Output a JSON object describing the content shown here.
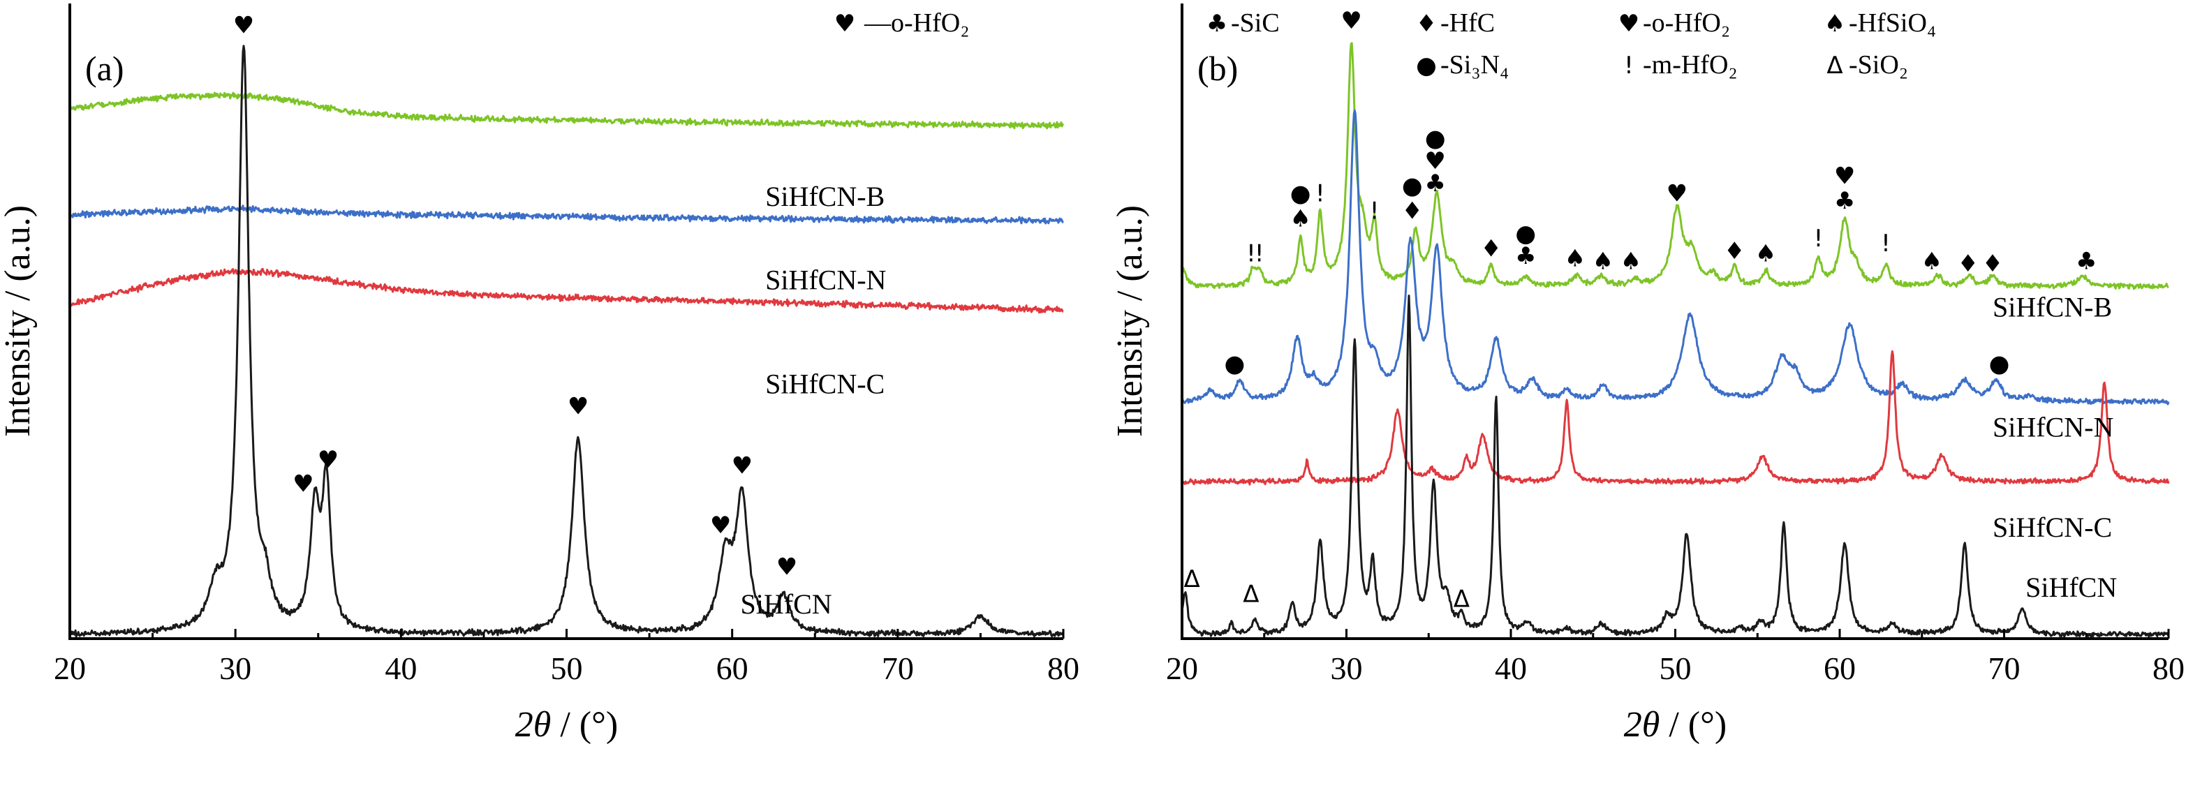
{
  "symbols": {
    "heart": "♥",
    "diamond": "♦",
    "spade": "♠",
    "club": "♣",
    "dot": "●",
    "excl": "!",
    "delta": "Δ"
  },
  "chart_data": [
    {
      "panel": "(a)",
      "type": "line",
      "xlabel_italic": "2θ",
      "xlabel_rest": " / (°)",
      "ylabel": "Intensity / (a.u.)",
      "xlim": [
        20,
        80
      ],
      "xticks": [
        "20",
        "30",
        "40",
        "50",
        "60",
        "70",
        "80"
      ],
      "legend": [
        {
          "marker": "heart",
          "text": "—o-HfO₂"
        }
      ],
      "series": [
        {
          "name": "SiHfCN-B",
          "color": "#7dc426",
          "offset": 0.855,
          "scale": 0.05,
          "base": [
            [
              20,
              0.55
            ],
            [
              22,
              0.7
            ],
            [
              24,
              0.85
            ],
            [
              26,
              0.95
            ],
            [
              28,
              1.0
            ],
            [
              30,
              1.0
            ],
            [
              31.5,
              0.96
            ],
            [
              33,
              0.85
            ],
            [
              35,
              0.65
            ],
            [
              37,
              0.45
            ],
            [
              40,
              0.3
            ],
            [
              45,
              0.22
            ],
            [
              50,
              0.18
            ],
            [
              55,
              0.14
            ],
            [
              60,
              0.1
            ],
            [
              65,
              0.07
            ],
            [
              70,
              0.05
            ],
            [
              75,
              0.03
            ],
            [
              80,
              0.0
            ]
          ],
          "peaks": []
        },
        {
          "name": "SiHfCN-N",
          "color": "#3c6fc8",
          "offset": 0.695,
          "scale": 0.025,
          "base": [
            [
              20,
              0.4
            ],
            [
              25,
              0.6
            ],
            [
              28,
              0.75
            ],
            [
              31,
              0.8
            ],
            [
              34,
              0.6
            ],
            [
              38,
              0.45
            ],
            [
              45,
              0.35
            ],
            [
              55,
              0.2
            ],
            [
              65,
              0.12
            ],
            [
              80,
              0.0
            ]
          ],
          "peaks": []
        },
        {
          "name": "SiHfCN-C",
          "color": "#e0393e",
          "offset": 0.545,
          "scale": 0.065,
          "base": [
            [
              20,
              0.15
            ],
            [
              23,
              0.45
            ],
            [
              26,
              0.75
            ],
            [
              29,
              0.95
            ],
            [
              31,
              1.0
            ],
            [
              33,
              0.92
            ],
            [
              36,
              0.75
            ],
            [
              40,
              0.52
            ],
            [
              45,
              0.38
            ],
            [
              50,
              0.32
            ],
            [
              55,
              0.27
            ],
            [
              60,
              0.22
            ],
            [
              65,
              0.17
            ],
            [
              70,
              0.12
            ],
            [
              75,
              0.06
            ],
            [
              80,
              0.0
            ]
          ],
          "peaks": []
        },
        {
          "name": "SiHfCN",
          "color": "#1a1a1a",
          "offset": 0.0,
          "scale": 1.0,
          "base": [
            [
              20,
              0.0
            ],
            [
              80,
              0.0
            ]
          ],
          "peaks": [
            [
              28.8,
              0.06,
              0.5
            ],
            [
              30.5,
              0.98,
              0.38
            ],
            [
              31.8,
              0.06,
              0.4
            ],
            [
              34.8,
              0.2,
              0.35
            ],
            [
              35.5,
              0.24,
              0.3
            ],
            [
              50.7,
              0.33,
              0.45
            ],
            [
              59.6,
              0.12,
              0.5
            ],
            [
              60.6,
              0.22,
              0.45
            ],
            [
              63.1,
              0.06,
              0.45
            ],
            [
              75.0,
              0.03,
              0.6
            ]
          ]
        }
      ],
      "curve_labels": [
        {
          "text": "SiHfCN-B",
          "x": 62,
          "y": 0.72
        },
        {
          "text": "SiHfCN-N",
          "x": 62,
          "y": 0.58
        },
        {
          "text": "SiHfCN-C",
          "x": 62,
          "y": 0.405
        },
        {
          "text": "SiHfCN",
          "x": 60.5,
          "y": 0.035,
          "big": true
        }
      ],
      "markers": [
        {
          "sym": "heart",
          "x": 30.5,
          "y": 1.01
        },
        {
          "sym": "heart",
          "x": 34.1,
          "y": 0.24
        },
        {
          "sym": "heart",
          "x": 35.6,
          "y": 0.28
        },
        {
          "sym": "heart",
          "x": 50.7,
          "y": 0.37
        },
        {
          "sym": "heart",
          "x": 59.3,
          "y": 0.17
        },
        {
          "sym": "heart",
          "x": 60.6,
          "y": 0.27
        },
        {
          "sym": "heart",
          "x": 63.3,
          "y": 0.1
        }
      ]
    },
    {
      "panel": "(b)",
      "type": "line",
      "xlabel_italic": "2θ",
      "xlabel_rest": " / (°)",
      "ylabel": "Intensity / (a.u.)",
      "xlim": [
        20,
        80
      ],
      "xticks": [
        "20",
        "30",
        "40",
        "50",
        "60",
        "70",
        "80"
      ],
      "legend": [
        {
          "marker": "club",
          "text": "-SiC"
        },
        {
          "marker": "diamond",
          "text": "-HfC"
        },
        {
          "marker": "heart",
          "text": "-o-HfO₂"
        },
        {
          "marker": "spade",
          "text": "-HfSiO₄"
        },
        {
          "marker": "dot",
          "text": "-Si₃N₄"
        },
        {
          "marker": "excl",
          "text": "-m-HfO₂"
        },
        {
          "marker": "delta",
          "text": "-SiO₂"
        }
      ],
      "series": [
        {
          "name": "SiHfCN-B",
          "color": "#7dc426",
          "offset": 0.695,
          "scale": 1.0,
          "base": [
            [
              20,
              0.0
            ],
            [
              80,
              0.0
            ]
          ],
          "peaks": [
            [
              20.1,
              0.03,
              0.2
            ],
            [
              24.3,
              0.03,
              0.2
            ],
            [
              24.7,
              0.03,
              0.2
            ],
            [
              27.2,
              0.09,
              0.2
            ],
            [
              28.4,
              0.14,
              0.2
            ],
            [
              30.3,
              0.47,
              0.28
            ],
            [
              31.0,
              0.08,
              0.3
            ],
            [
              31.7,
              0.11,
              0.2
            ],
            [
              34.2,
              0.1,
              0.25
            ],
            [
              35.5,
              0.18,
              0.35
            ],
            [
              36.5,
              0.03,
              0.3
            ],
            [
              38.8,
              0.04,
              0.2
            ],
            [
              40.9,
              0.02,
              0.3
            ],
            [
              44.0,
              0.02,
              0.3
            ],
            [
              45.5,
              0.02,
              0.3
            ],
            [
              47.6,
              0.01,
              0.3
            ],
            [
              50.1,
              0.15,
              0.4
            ],
            [
              51.0,
              0.06,
              0.4
            ],
            [
              52.3,
              0.02,
              0.3
            ],
            [
              53.6,
              0.04,
              0.2
            ],
            [
              55.5,
              0.03,
              0.25
            ],
            [
              58.7,
              0.05,
              0.25
            ],
            [
              60.3,
              0.13,
              0.35
            ],
            [
              61.0,
              0.03,
              0.3
            ],
            [
              62.8,
              0.04,
              0.25
            ],
            [
              66.0,
              0.02,
              0.3
            ],
            [
              67.9,
              0.02,
              0.3
            ],
            [
              69.3,
              0.02,
              0.3
            ],
            [
              74.8,
              0.02,
              0.4
            ]
          ]
        },
        {
          "name": "SiHfCN-N",
          "color": "#3c6fc8",
          "offset": 0.465,
          "scale": 1.0,
          "base": [
            [
              20,
              0.0
            ],
            [
              80,
              0.0
            ]
          ],
          "peaks": [
            [
              21.7,
              0.02,
              0.3
            ],
            [
              23.5,
              0.04,
              0.3
            ],
            [
              27.0,
              0.12,
              0.35
            ],
            [
              28.0,
              0.03,
              0.3
            ],
            [
              30.5,
              0.57,
              0.35
            ],
            [
              31.7,
              0.05,
              0.35
            ],
            [
              33.9,
              0.3,
              0.4
            ],
            [
              35.5,
              0.29,
              0.4
            ],
            [
              39.1,
              0.12,
              0.4
            ],
            [
              41.3,
              0.04,
              0.4
            ],
            [
              43.4,
              0.02,
              0.3
            ],
            [
              45.6,
              0.03,
              0.35
            ],
            [
              50.9,
              0.17,
              0.6
            ],
            [
              56.5,
              0.08,
              0.5
            ],
            [
              57.3,
              0.04,
              0.4
            ],
            [
              60.6,
              0.15,
              0.6
            ],
            [
              63.8,
              0.03,
              0.4
            ],
            [
              67.6,
              0.04,
              0.5
            ],
            [
              69.5,
              0.04,
              0.4
            ],
            [
              71.5,
              0.01,
              0.4
            ]
          ]
        },
        {
          "name": "SiHfCN-C",
          "color": "#e0393e",
          "offset": 0.305,
          "scale": 1.0,
          "base": [
            [
              20,
              0.0
            ],
            [
              80,
              0.0
            ]
          ],
          "peaks": [
            [
              27.6,
              0.04,
              0.15
            ],
            [
              33.1,
              0.14,
              0.35
            ],
            [
              35.2,
              0.02,
              0.3
            ],
            [
              37.3,
              0.04,
              0.2
            ],
            [
              38.3,
              0.09,
              0.35
            ],
            [
              43.4,
              0.16,
              0.2
            ],
            [
              55.3,
              0.05,
              0.4
            ],
            [
              63.2,
              0.26,
              0.22
            ],
            [
              66.2,
              0.05,
              0.4
            ],
            [
              76.1,
              0.2,
              0.22
            ]
          ]
        },
        {
          "name": "SiHfCN",
          "color": "#1a1a1a",
          "offset": 0.0,
          "scale": 1.0,
          "base": [
            [
              20,
              0.02
            ],
            [
              21,
              0.0
            ],
            [
              80,
              0.0
            ]
          ],
          "peaks": [
            [
              20.2,
              0.07,
              0.15
            ],
            [
              23.0,
              0.02,
              0.15
            ],
            [
              24.4,
              0.03,
              0.2
            ],
            [
              26.7,
              0.06,
              0.2
            ],
            [
              28.4,
              0.18,
              0.25
            ],
            [
              30.5,
              0.58,
              0.22
            ],
            [
              31.6,
              0.13,
              0.2
            ],
            [
              33.8,
              0.66,
              0.18
            ],
            [
              35.3,
              0.29,
              0.25
            ],
            [
              36.1,
              0.06,
              0.3
            ],
            [
              37.0,
              0.03,
              0.2
            ],
            [
              39.1,
              0.47,
              0.18
            ],
            [
              41.0,
              0.02,
              0.3
            ],
            [
              43.4,
              0.01,
              0.3
            ],
            [
              45.5,
              0.02,
              0.3
            ],
            [
              49.5,
              0.03,
              0.3
            ],
            [
              50.7,
              0.2,
              0.3
            ],
            [
              54.0,
              0.01,
              0.3
            ],
            [
              55.2,
              0.02,
              0.3
            ],
            [
              56.6,
              0.22,
              0.22
            ],
            [
              60.3,
              0.18,
              0.3
            ],
            [
              63.2,
              0.02,
              0.3
            ],
            [
              67.6,
              0.18,
              0.25
            ],
            [
              71.1,
              0.05,
              0.3
            ]
          ]
        }
      ],
      "curve_labels": [
        {
          "text": "SiHfCN-B",
          "x": 69.3,
          "y": 0.635
        },
        {
          "text": "SiHfCN-N",
          "x": 69.3,
          "y": 0.395
        },
        {
          "text": "SiHfCN-C",
          "x": 69.3,
          "y": 0.195
        },
        {
          "text": "SiHfCN",
          "x": 71.3,
          "y": 0.075
        }
      ],
      "markers": [
        {
          "sym": "heart",
          "x": 30.3,
          "y": 1.21
        },
        {
          "sym": "excl",
          "x": 24.2,
          "y": 0.745
        },
        {
          "sym": "excl",
          "x": 24.7,
          "y": 0.745
        },
        {
          "sym": "spade",
          "x": 27.2,
          "y": 0.815
        },
        {
          "sym": "dot",
          "x": 27.2,
          "y": 0.865
        },
        {
          "sym": "excl",
          "x": 28.4,
          "y": 0.865
        },
        {
          "sym": "excl",
          "x": 31.7,
          "y": 0.83
        },
        {
          "sym": "diamond",
          "x": 34.0,
          "y": 0.83
        },
        {
          "sym": "dot",
          "x": 34.0,
          "y": 0.88
        },
        {
          "sym": "club",
          "x": 35.4,
          "y": 0.885
        },
        {
          "sym": "heart",
          "x": 35.4,
          "y": 0.93
        },
        {
          "sym": "dot",
          "x": 35.4,
          "y": 0.975
        },
        {
          "sym": "diamond",
          "x": 38.8,
          "y": 0.755
        },
        {
          "sym": "club",
          "x": 40.9,
          "y": 0.74
        },
        {
          "sym": "dot",
          "x": 40.9,
          "y": 0.785
        },
        {
          "sym": "spade",
          "x": 43.9,
          "y": 0.735
        },
        {
          "sym": "spade",
          "x": 45.6,
          "y": 0.73
        },
        {
          "sym": "spade",
          "x": 47.3,
          "y": 0.73
        },
        {
          "sym": "heart",
          "x": 50.1,
          "y": 0.865
        },
        {
          "sym": "diamond",
          "x": 53.6,
          "y": 0.75
        },
        {
          "sym": "spade",
          "x": 55.5,
          "y": 0.745
        },
        {
          "sym": "excl",
          "x": 58.7,
          "y": 0.775
        },
        {
          "sym": "club",
          "x": 60.3,
          "y": 0.85
        },
        {
          "sym": "heart",
          "x": 60.3,
          "y": 0.9
        },
        {
          "sym": "excl",
          "x": 62.8,
          "y": 0.765
        },
        {
          "sym": "spade",
          "x": 65.6,
          "y": 0.73
        },
        {
          "sym": "diamond",
          "x": 67.8,
          "y": 0.725
        },
        {
          "sym": "diamond",
          "x": 69.3,
          "y": 0.725
        },
        {
          "sym": "club",
          "x": 75.0,
          "y": 0.73
        },
        {
          "sym": "dot",
          "x": 23.2,
          "y": 0.525
        },
        {
          "sym": "dot",
          "x": 69.7,
          "y": 0.525
        },
        {
          "sym": "delta",
          "x": 20.6,
          "y": 0.095
        },
        {
          "sym": "delta",
          "x": 24.2,
          "y": 0.065
        },
        {
          "sym": "delta",
          "x": 37.0,
          "y": 0.055
        }
      ]
    }
  ]
}
